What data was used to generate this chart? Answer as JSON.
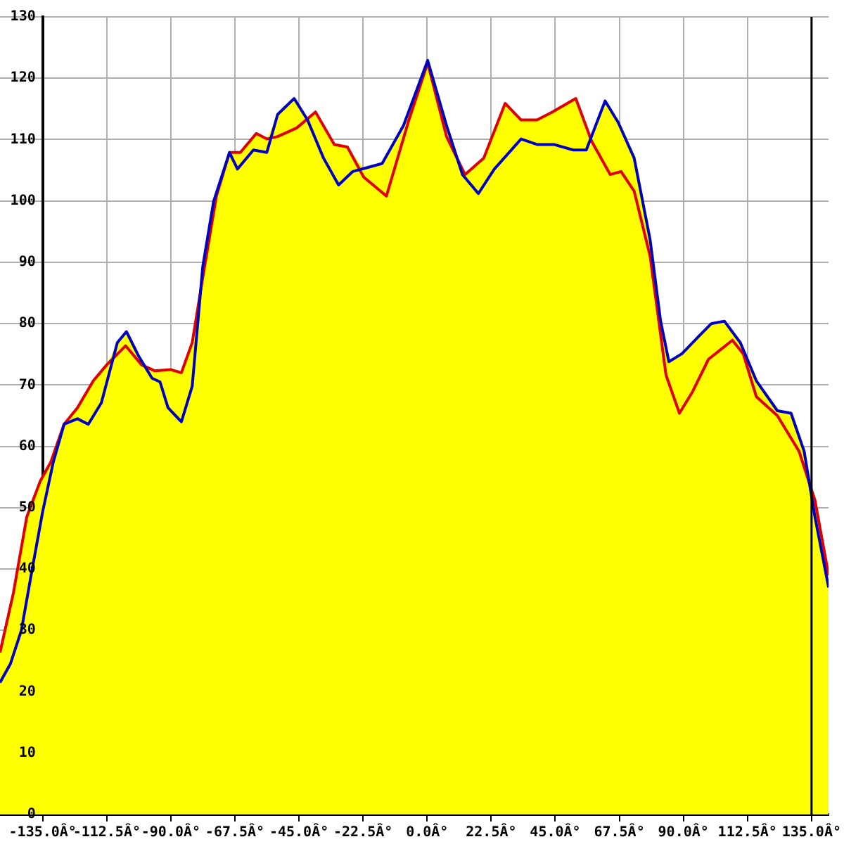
{
  "chart_data": {
    "type": "line",
    "xlim": [
      -150,
      141
    ],
    "ylim": [
      0,
      130
    ],
    "xticks": [
      {
        "value": -135,
        "label": "-135.0Â°"
      },
      {
        "value": -112.5,
        "label": "-112.5Â°"
      },
      {
        "value": -90,
        "label": "-90.0Â°"
      },
      {
        "value": -67.5,
        "label": "-67.5Â°"
      },
      {
        "value": -45,
        "label": "-45.0Â°"
      },
      {
        "value": -22.5,
        "label": "-22.5Â°"
      },
      {
        "value": 0,
        "label": "0.0Â°"
      },
      {
        "value": 22.5,
        "label": "22.5Â°"
      },
      {
        "value": 45,
        "label": "45.0Â°"
      },
      {
        "value": 67.5,
        "label": "67.5Â°"
      },
      {
        "value": 90,
        "label": "90.0Â°"
      },
      {
        "value": 112.5,
        "label": "112.5Â°"
      },
      {
        "value": 135,
        "label": "135.0Â°"
      }
    ],
    "yticks": [
      0,
      10,
      20,
      30,
      40,
      50,
      60,
      70,
      80,
      90,
      100,
      110,
      120,
      130
    ],
    "grid": true,
    "legend": false,
    "ref_lines": [
      {
        "axis": "x",
        "value": 135,
        "color": "#000000"
      }
    ],
    "series": [
      {
        "color": "#0000c0",
        "x": [
          -150,
          -146.3,
          -142.5,
          -138.8,
          -135,
          -131.3,
          -127.5,
          -122.8,
          -119,
          -114.4,
          -108.8,
          -105.6,
          -101.3,
          -96.6,
          -93.8,
          -91,
          -86.3,
          -82.5,
          -78.8,
          -75,
          -69.4,
          -66.6,
          -61,
          -56.3,
          -52.5,
          -46.7,
          -42,
          -36.4,
          -31.1,
          -26.1,
          -15.8,
          -8.3,
          0.2,
          6.8,
          12.4,
          18,
          23.6,
          33,
          38.6,
          44.5,
          51.3,
          55.9,
          62.5,
          67.1,
          72.7,
          78.3,
          82,
          84.9,
          89.5,
          95.1,
          99.8,
          104.4,
          110,
          115.6,
          123,
          127.8,
          132.4,
          136.2,
          141
        ],
        "values": [
          21.5,
          24.6,
          30,
          39.7,
          49.4,
          57.4,
          63.6,
          64.5,
          63.6,
          67.1,
          76.9,
          78.7,
          74.7,
          71.1,
          70.5,
          66.3,
          64,
          69.8,
          89.3,
          99.9,
          107.9,
          105.2,
          108.3,
          107.9,
          114.1,
          116.7,
          113.2,
          107,
          102.6,
          104.8,
          106.1,
          112.3,
          122.9,
          112.3,
          104.3,
          101.2,
          105.2,
          110.1,
          109.2,
          109.2,
          108.3,
          108.3,
          116.3,
          112.8,
          107,
          93.7,
          80.4,
          73.8,
          75.1,
          77.8,
          80,
          80.4,
          76.9,
          70.7,
          65.8,
          65.4,
          59.2,
          48.5,
          37
        ]
      },
      {
        "color": "#e00000",
        "x": [
          -150,
          -145.3,
          -140.6,
          -135.9,
          -132.2,
          -127.5,
          -122.8,
          -117.2,
          -112.5,
          -105.9,
          -100.3,
          -95.6,
          -90,
          -86.3,
          -82.5,
          -78.8,
          -74,
          -69.4,
          -65.6,
          -60,
          -56.3,
          -52.5,
          -45.8,
          -39.2,
          -32.6,
          -28,
          -22.3,
          -14.3,
          -6.4,
          0.2,
          6.8,
          13.3,
          19.9,
          27.4,
          33,
          38.6,
          44,
          52.2,
          57.8,
          64.3,
          68.1,
          72.7,
          78.3,
          83.9,
          88.6,
          93.2,
          98.8,
          107.2,
          111,
          115.6,
          123,
          130.6,
          136.2,
          141
        ],
        "values": [
          26.4,
          36.1,
          48.5,
          54.3,
          57.4,
          63.6,
          66.3,
          70.7,
          73.3,
          76.4,
          73.3,
          72.3,
          72.5,
          72,
          76.9,
          87.5,
          100.8,
          107.9,
          107.9,
          111,
          110.1,
          110.5,
          111.9,
          114.5,
          109.2,
          108.8,
          103.9,
          100.8,
          113.2,
          122.5,
          110.5,
          104.3,
          107,
          115.9,
          113.2,
          113.2,
          114.5,
          116.7,
          109.7,
          104.3,
          104.8,
          101.6,
          91,
          71.6,
          65.4,
          68.9,
          74.2,
          77.3,
          75.1,
          68.1,
          65,
          59.2,
          51.2,
          39
        ]
      },
      {
        "type": "area",
        "color": "#ffff00",
        "x": [
          -150,
          -145.3,
          -140.6,
          -135.9,
          -132.2,
          -127.5,
          -122.8,
          -117.2,
          -112.5,
          -108.8,
          -105.6,
          -101.3,
          -100.3,
          -95.6,
          -90,
          -86.3,
          -82.5,
          -78.8,
          -74,
          -69.4,
          -65.6,
          -60,
          -56.3,
          -52.5,
          -46.7,
          -42,
          -39.2,
          -32.6,
          -28,
          -22.3,
          -15.8,
          -8.3,
          0.2,
          6.8,
          13.3,
          19.9,
          27.4,
          33,
          38.6,
          44,
          52.2,
          57.8,
          62.5,
          67.1,
          72.7,
          78.3,
          82,
          84.9,
          89.5,
          95.1,
          99.8,
          104.4,
          110,
          115.6,
          123,
          127.8,
          132.4,
          136.2,
          141
        ],
        "values": [
          26.4,
          36.1,
          48.5,
          54.3,
          57.4,
          63.6,
          66.3,
          70.7,
          73.3,
          76.9,
          78.7,
          74.7,
          73.3,
          72.3,
          72.5,
          72,
          76.9,
          89.3,
          100.8,
          107.9,
          107.9,
          111,
          110.1,
          114.1,
          116.7,
          113.2,
          114.5,
          109.2,
          108.8,
          105.2,
          106.1,
          112.3,
          122.9,
          112.3,
          104.3,
          107,
          115.9,
          113.2,
          113.2,
          114.5,
          116.7,
          109.7,
          116.3,
          112.8,
          107,
          93.7,
          80.4,
          73.8,
          75.1,
          77.8,
          80,
          80.4,
          76.9,
          70.7,
          65.8,
          65.4,
          59.2,
          51.2,
          39
        ]
      }
    ]
  }
}
